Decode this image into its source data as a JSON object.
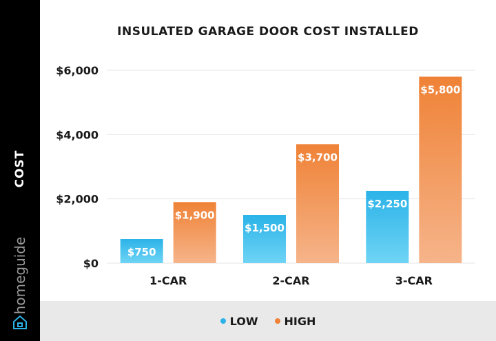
{
  "brand": {
    "name": "homeguide",
    "icon": "house-icon"
  },
  "chart_data": {
    "type": "bar",
    "title": "INSULATED GARAGE DOOR COST INSTALLED",
    "ylabel": "COST",
    "xlabel": "",
    "categories": [
      "1-CAR",
      "2-CAR",
      "3-CAR"
    ],
    "series": [
      {
        "name": "LOW",
        "values": [
          750,
          1500,
          2250
        ],
        "labels": [
          "$750",
          "$1,500",
          "$2,250"
        ],
        "color_top": "#2bb3e8",
        "color_bottom": "#6fd4f5"
      },
      {
        "name": "HIGH",
        "values": [
          1900,
          3700,
          5800
        ],
        "labels": [
          "$1,900",
          "$3,700",
          "$5,800"
        ],
        "color_top": "#ef8236",
        "color_bottom": "#f6b48a"
      }
    ],
    "ylim": [
      0,
      6000
    ],
    "yticks": [
      0,
      2000,
      4000,
      6000
    ],
    "ytick_labels": [
      "$0",
      "$2,000",
      "$4,000",
      "$6,000"
    ],
    "grid": true,
    "legend_position": "bottom"
  },
  "legend": {
    "low_color": "#2bb3e8",
    "high_color": "#ef8236"
  }
}
